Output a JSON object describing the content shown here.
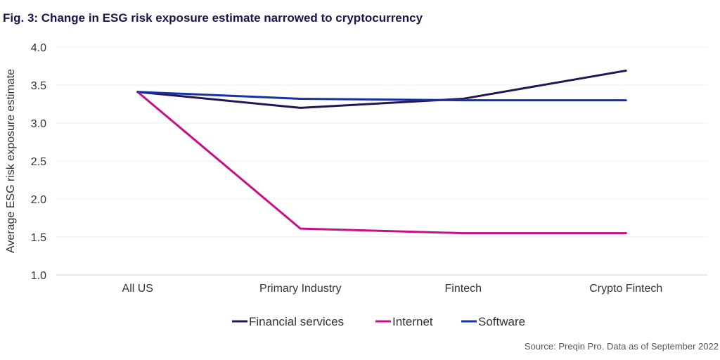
{
  "figure": {
    "title": "Fig. 3: Change in ESG risk exposure estimate narrowed to cryptocurrency",
    "source": "Source: Preqin Pro. Data as of September 2022"
  },
  "chart_data": {
    "type": "line",
    "title": "Fig. 3: Change in ESG risk exposure estimate narrowed to cryptocurrency",
    "xlabel": "",
    "ylabel": "Average ESG risk exposure estimate",
    "categories": [
      "All US",
      "Primary Industry",
      "Fintech",
      "Crypto Fintech"
    ],
    "ylim": [
      1.0,
      4.0
    ],
    "yticks": [
      "1.0",
      "1.5",
      "2.0",
      "2.5",
      "3.0",
      "3.5",
      "4.0"
    ],
    "grid": "horizontal",
    "legend_position": "bottom-center",
    "series": [
      {
        "name": "Financial services",
        "color": "#241654",
        "values": [
          3.41,
          3.2,
          3.32,
          3.69
        ]
      },
      {
        "name": "Internet",
        "color": "#c80f86",
        "values": [
          3.41,
          1.61,
          1.55,
          1.55
        ]
      },
      {
        "name": "Software",
        "color": "#1531a8",
        "values": [
          3.41,
          3.32,
          3.3,
          3.3
        ]
      }
    ]
  }
}
